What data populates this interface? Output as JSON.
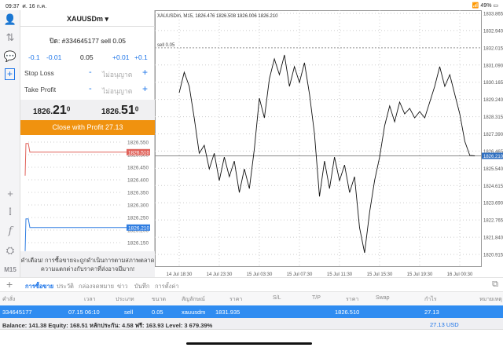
{
  "status": {
    "time": "09:37",
    "date": "ศ. 16 ก.ค.",
    "battery": "49%"
  },
  "panel": {
    "symbol": "XAUUSDm ▾",
    "order_line": "ปิด: #334645177 sell 0.05",
    "steps": [
      "-0.1",
      "-0.01",
      "0.05",
      "+0.01",
      "+0.1"
    ],
    "stop_loss": {
      "label": "Stop Loss",
      "value": "ไม่อนุญาต"
    },
    "take_profit": {
      "label": "Take Profit",
      "value": "ไม่อนุญาต"
    },
    "bid": {
      "main": "1826.",
      "big": "21",
      "sup": "0"
    },
    "ask": {
      "main": "1826.",
      "big": "51",
      "sup": "0"
    },
    "close_button": "Close with Profit 27.13",
    "mini_ticks": [
      "1826.550",
      "1826.500",
      "1826.450",
      "1826.400",
      "1826.350",
      "1826.300",
      "1826.250",
      "1826.200",
      "1826.150"
    ],
    "ask_label": "1826.510",
    "bid_label": "1826.210",
    "warning": "คำเตือน! การซื้อขายจะถูกดำเนินการตามสภาพตลาด ความแตกต่างกับราคาที่ส่งอาจมีมาก!",
    "colors": {
      "ask": "#e0625a",
      "bid": "#2f7de1",
      "close": "#f0920f"
    }
  },
  "sidebar": {
    "timeframe": "M15"
  },
  "chart_data": {
    "type": "line",
    "title": "XAUUSDm, M15, 1826.476 1826.508 1826.006 1826.210",
    "y_ticks": [
      "1833.865",
      "1832.940",
      "1832.015",
      "1831.090",
      "1830.165",
      "1829.240",
      "1828.315",
      "1827.390",
      "1826.465",
      "1825.540",
      "1824.615",
      "1823.690",
      "1822.765",
      "1821.840",
      "1820.915"
    ],
    "ylim": [
      1820.915,
      1833.865
    ],
    "x_ticks": [
      "14 Jul 18:30",
      "14 Jul 23:30",
      "15 Jul 03:30",
      "15 Jul 07:30",
      "15 Jul 11:30",
      "15 Jul 15:30",
      "15 Jul 19:30",
      "16 Jul 00:30"
    ],
    "sell_level": {
      "label": "sell 0.05",
      "price": 1832.015
    },
    "current_price": "1826.210",
    "values": [
      1829.6,
      1830.7,
      1829.94,
      1828.25,
      1826.35,
      1826.78,
      1825.51,
      1826.35,
      1824.88,
      1826.14,
      1825.09,
      1825.93,
      1824.24,
      1825.51,
      1824.45,
      1826.57,
      1829.31,
      1828.25,
      1830.36,
      1831.42,
      1830.57,
      1831.63,
      1829.94,
      1831.0,
      1830.15,
      1831.21,
      1829.52,
      1827.41,
      1824.03,
      1825.93,
      1824.45,
      1826.14,
      1824.88,
      1825.72,
      1824.24,
      1825.09,
      1822.35,
      1821.0,
      1823.19,
      1824.88,
      1826.14,
      1827.83,
      1828.89,
      1828.04,
      1829.1,
      1828.46,
      1828.76,
      1828.25,
      1828.59,
      1828.25,
      1829.1,
      1829.94,
      1831.0,
      1829.94,
      1830.57,
      1829.52,
      1828.46,
      1826.99,
      1826.23,
      1826.21
    ],
    "grid": true
  },
  "tabs": [
    "การซื้อขาย",
    "ประวัติ",
    "กล่องจดหมาย",
    "ข่าว",
    "บันทึก",
    "การตั้งค่า"
  ],
  "table": {
    "headers": [
      "คำสั่ง",
      "เวลา",
      "ประเภท",
      "ขนาด",
      "สัญลักษณ์",
      "ราคา",
      "S/L",
      "T/P",
      "ราคา",
      "Swap",
      "กำไร",
      "หมายเหตุ"
    ],
    "row": [
      "334645177",
      "07.15 06:10",
      "sell",
      "0.05",
      "xauusdm",
      "1831.935",
      "",
      "",
      "1826.510",
      "",
      "27.13",
      ""
    ]
  },
  "balance": {
    "text": "Balance: 141.38 Equity: 168.51 หลักประกัน: 4.58 ฟรี: 163.93 Level: 3 679.39%",
    "profit": "27.13  USD"
  }
}
